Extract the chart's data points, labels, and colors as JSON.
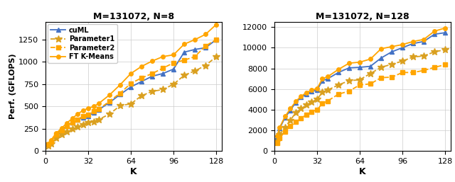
{
  "title1": "M=131072, N=8",
  "title2": "M=131072, N=128",
  "xlabel": "K",
  "ylabel": "Perf. (GFLOPS)",
  "k_values": [
    2,
    4,
    8,
    12,
    16,
    20,
    24,
    28,
    32,
    36,
    40,
    48,
    56,
    64,
    72,
    80,
    88,
    96,
    104,
    112,
    120,
    128
  ],
  "n8_cuml": [
    75,
    110,
    185,
    235,
    285,
    320,
    350,
    375,
    395,
    430,
    465,
    545,
    635,
    720,
    780,
    840,
    870,
    920,
    1110,
    1140,
    1160,
    1250
  ],
  "n8_param1": [
    60,
    80,
    145,
    185,
    220,
    245,
    270,
    300,
    320,
    330,
    355,
    415,
    510,
    530,
    620,
    670,
    690,
    750,
    850,
    900,
    960,
    1060
  ],
  "n8_param2": [
    75,
    105,
    185,
    230,
    280,
    320,
    355,
    390,
    410,
    445,
    470,
    560,
    650,
    760,
    820,
    870,
    930,
    990,
    1020,
    1060,
    1180,
    1250
  ],
  "n8_ftkmeans": [
    80,
    120,
    200,
    255,
    315,
    365,
    415,
    455,
    480,
    500,
    535,
    630,
    745,
    870,
    950,
    1010,
    1060,
    1080,
    1200,
    1250,
    1310,
    1420
  ],
  "n128_cuml": [
    1400,
    2200,
    3250,
    3950,
    4700,
    5200,
    5500,
    5750,
    5900,
    6800,
    7000,
    7600,
    8050,
    8100,
    8200,
    9000,
    9600,
    10000,
    10400,
    10600,
    11300,
    11450
  ],
  "n128_param1": [
    950,
    1600,
    2300,
    3000,
    3700,
    4100,
    4450,
    4750,
    5000,
    5700,
    5900,
    6400,
    6800,
    6900,
    7500,
    8100,
    8400,
    8700,
    9100,
    9200,
    9600,
    9800
  ],
  "n128_param2": [
    800,
    1250,
    1900,
    2400,
    2800,
    3200,
    3500,
    3800,
    4000,
    4600,
    4850,
    5500,
    5800,
    6400,
    6500,
    7100,
    7150,
    7600,
    7600,
    7800,
    8100,
    8350
  ],
  "n128_ftkmeans": [
    1450,
    2300,
    3350,
    4100,
    4800,
    5300,
    5650,
    5900,
    6050,
    7000,
    7200,
    7900,
    8500,
    8600,
    8900,
    9900,
    10100,
    10300,
    10600,
    10800,
    11600,
    11900
  ],
  "color_blue": "#4472c4",
  "color_gold_solid": "#FFA500",
  "color_gold_dashed_star": "#DAA020",
  "color_gold_dashed_sq": "#FFA500",
  "xticks": [
    0,
    32,
    64,
    96,
    128
  ],
  "yticks_n8": [
    0,
    250,
    500,
    750,
    1000,
    1250
  ],
  "yticks_n128": [
    0,
    2000,
    4000,
    6000,
    8000,
    10000,
    12000
  ],
  "legend_labels": [
    "cuML",
    "Parameter1",
    "Parameter2",
    "FT K-Means"
  ]
}
